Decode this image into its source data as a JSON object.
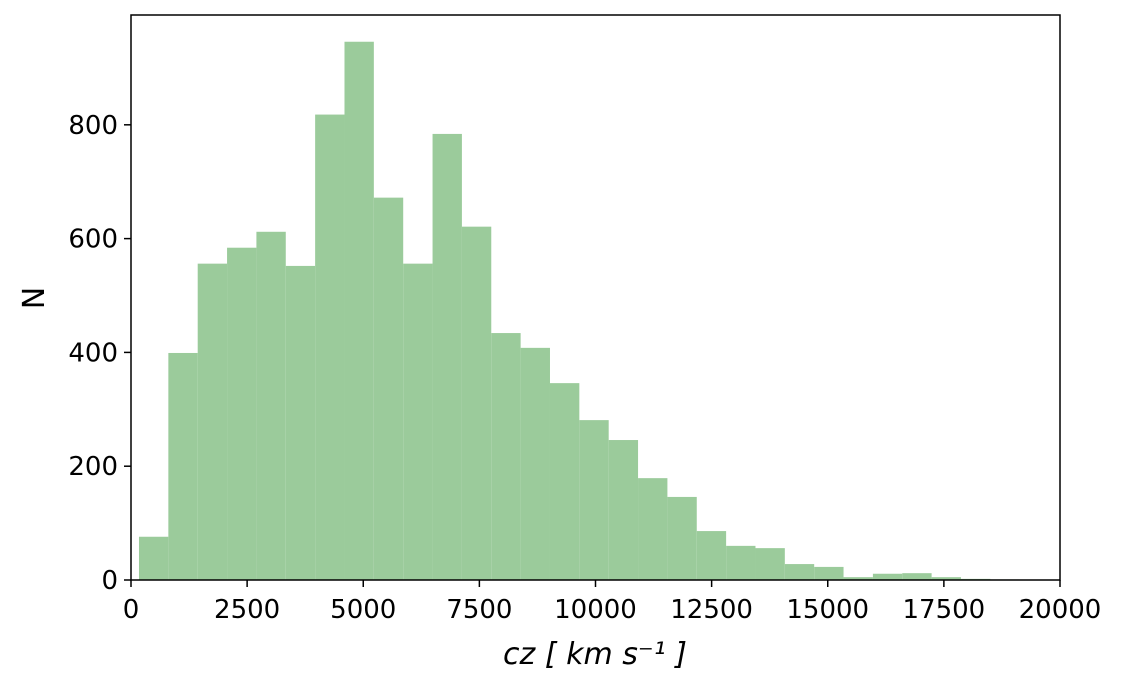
{
  "chart_data": {
    "type": "histogram",
    "bins": [
      172,
      804,
      1436,
      2068,
      2700,
      3332,
      3964,
      4596,
      5228,
      5860,
      6492,
      7124,
      7756,
      8388,
      9020,
      9652,
      10284,
      10916,
      11548,
      12180,
      12812,
      13444,
      14076,
      14708,
      15340,
      15972,
      16604,
      17236,
      17868,
      18500,
      19132
    ],
    "values": [
      76,
      399,
      556,
      584,
      612,
      552,
      818,
      946,
      672,
      556,
      784,
      621,
      434,
      408,
      346,
      281,
      246,
      179,
      146,
      86,
      60,
      56,
      28,
      23,
      5,
      11,
      12,
      5,
      2,
      1
    ],
    "color": "#9bcb9b",
    "xlabel": "cz [ km s⁻¹ ]",
    "ylabel": "N",
    "xlim": [
      0,
      20000
    ],
    "xticks": [
      0,
      2500,
      5000,
      7500,
      10000,
      12500,
      15000,
      17500,
      20000
    ],
    "ylim": [
      0,
      993
    ],
    "yticks": [
      0,
      200,
      400,
      600,
      800
    ],
    "grid": false
  }
}
